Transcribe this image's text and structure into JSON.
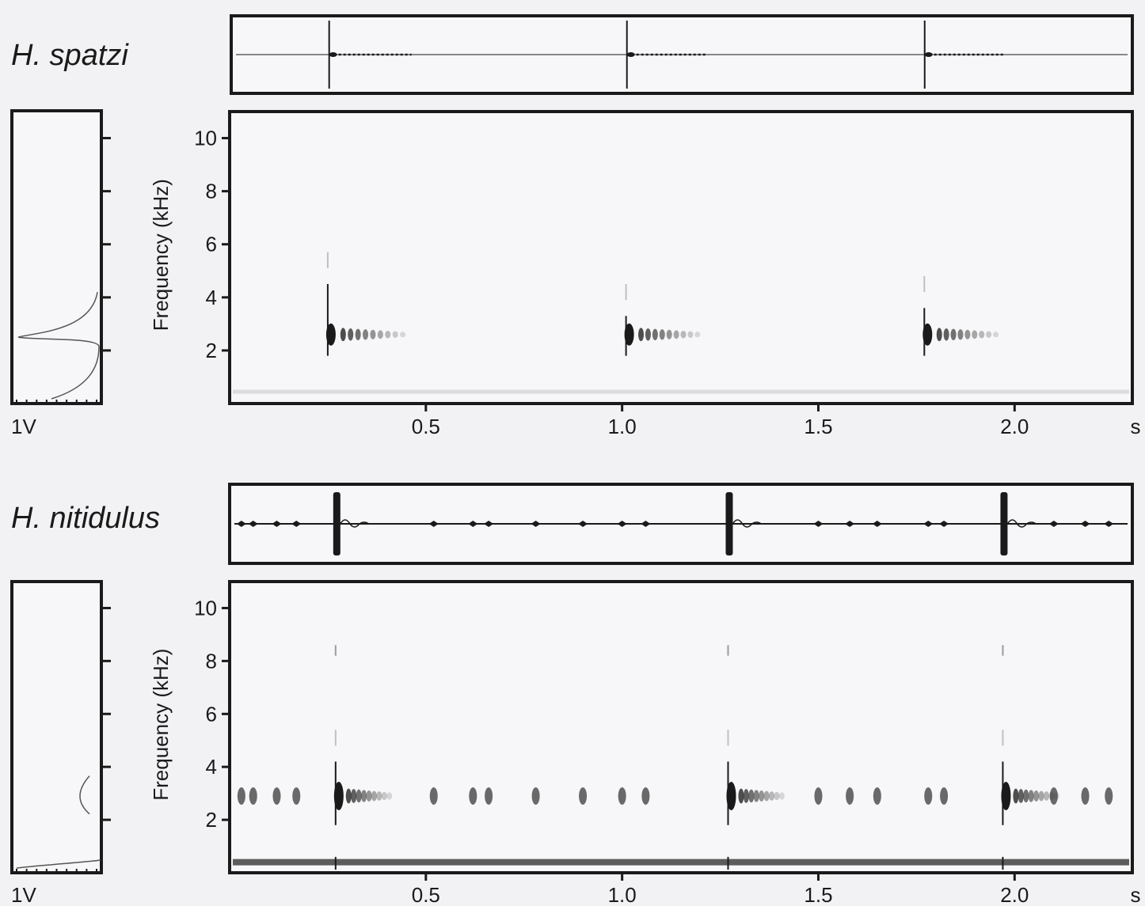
{
  "colors": {
    "background": "#f2f2f4",
    "ink": "#1a1a1a",
    "panel": "#f7f7f9"
  },
  "chart_data": [
    {
      "type": "spectrogram",
      "species": "H. spatzi",
      "ylabel": "Frequency (kHz)",
      "y_ticks": [
        2,
        4,
        6,
        8,
        10
      ],
      "ylim": [
        0,
        11
      ],
      "x_ticks": [
        0.5,
        1.0,
        1.5,
        2.0
      ],
      "x_tick_labels": [
        "0.5",
        "1.0",
        "1.5",
        "2.0"
      ],
      "x_unit": "s",
      "xlim": [
        0,
        2.3
      ],
      "spectrum_scale_label": "1V",
      "spectrum_peak_khz": 2.5,
      "pulses": [
        {
          "t": 0.25,
          "freq_khz": 2.6,
          "train_end": 0.46,
          "max_khz": 4.5
        },
        {
          "t": 1.01,
          "freq_khz": 2.6,
          "train_end": 1.21,
          "max_khz": 3.3
        },
        {
          "t": 1.77,
          "freq_khz": 2.6,
          "train_end": 1.97,
          "max_khz": 3.6
        }
      ]
    },
    {
      "type": "spectrogram",
      "species": "H. nitidulus",
      "ylabel": "Frequency (kHz)",
      "y_ticks": [
        2,
        4,
        6,
        8,
        10
      ],
      "ylim": [
        0,
        11
      ],
      "x_ticks": [
        0.5,
        1.0,
        1.5,
        2.0
      ],
      "x_tick_labels": [
        "0.5",
        "1.0",
        "1.5",
        "2.0"
      ],
      "x_unit": "s",
      "xlim": [
        0,
        2.3
      ],
      "spectrum_scale_label": "1V",
      "spectrum_peak_khz": 3.0,
      "pulses": [
        {
          "t": 0.27,
          "freq_khz": 2.9,
          "train_end": 0.42,
          "max_khz": 4.2
        },
        {
          "t": 1.27,
          "freq_khz": 2.9,
          "train_end": 1.42,
          "max_khz": 4.2
        },
        {
          "t": 1.97,
          "freq_khz": 2.9,
          "train_end": 2.12,
          "max_khz": 4.2
        }
      ],
      "background_chirps": [
        0.03,
        0.06,
        0.12,
        0.17,
        0.52,
        0.62,
        0.66,
        0.78,
        0.9,
        1.0,
        1.06,
        1.5,
        1.58,
        1.65,
        1.78,
        1.82,
        2.1,
        2.18,
        2.24
      ]
    }
  ]
}
